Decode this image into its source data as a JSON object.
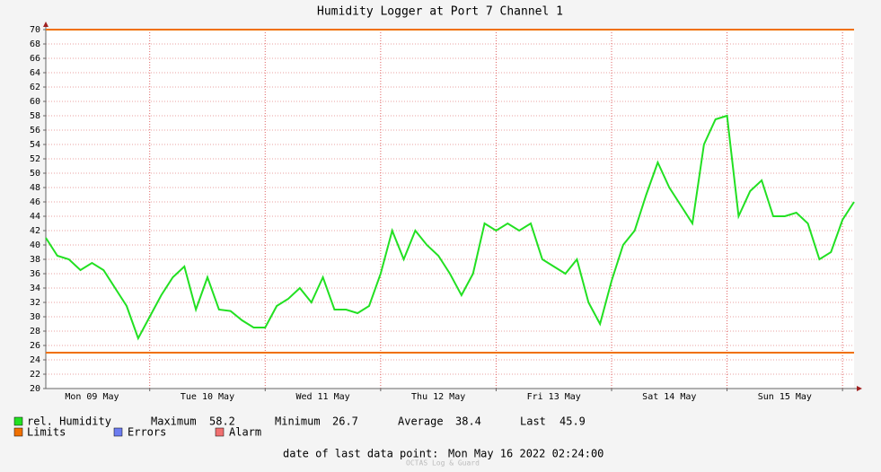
{
  "chart_data": {
    "type": "line",
    "title": "Humidity Logger at Port 7 Channel 1",
    "x": [
      0,
      0.1,
      0.2,
      0.3,
      0.4,
      0.5,
      0.6,
      0.7,
      0.8,
      0.9,
      1,
      1.1,
      1.2,
      1.3,
      1.4,
      1.5,
      1.6,
      1.7,
      1.8,
      1.9,
      2,
      2.1,
      2.2,
      2.3,
      2.4,
      2.5,
      2.6,
      2.7,
      2.8,
      2.9,
      3,
      3.1,
      3.2,
      3.3,
      3.4,
      3.5,
      3.6,
      3.7,
      3.8,
      3.9,
      4,
      4.1,
      4.2,
      4.3,
      4.4,
      4.5,
      4.6,
      4.7,
      4.8,
      4.9,
      5,
      5.1,
      5.2,
      5.3,
      5.4,
      5.5,
      5.6,
      5.7,
      5.8,
      5.9,
      6,
      6.1,
      6.2,
      6.3,
      6.4,
      6.5,
      6.6,
      6.7,
      6.8,
      6.9,
      7
    ],
    "xlim": [
      0,
      7
    ],
    "xticks": [
      {
        "value": 0.4,
        "label": "Mon 09 May"
      },
      {
        "value": 1.4,
        "label": "Tue 10 May"
      },
      {
        "value": 2.4,
        "label": "Wed 11 May"
      },
      {
        "value": 3.4,
        "label": "Thu 12 May"
      },
      {
        "value": 4.4,
        "label": "Fri 13 May"
      },
      {
        "value": 5.4,
        "label": "Sat 14 May"
      },
      {
        "value": 6.4,
        "label": "Sun 15 May"
      }
    ],
    "xgrid_lines": [
      0.9,
      1.9,
      2.9,
      3.9,
      4.9,
      5.9,
      6.9
    ],
    "ylim": [
      20,
      70
    ],
    "yticks": [
      20,
      22,
      24,
      26,
      28,
      30,
      32,
      34,
      36,
      38,
      40,
      42,
      44,
      46,
      48,
      50,
      52,
      54,
      56,
      58,
      60,
      62,
      64,
      66,
      68,
      70
    ],
    "grid": true,
    "series": [
      {
        "name": "rel. Humidity",
        "color": "#22e022",
        "values": [
          41,
          38.5,
          38,
          36.5,
          37.5,
          36.5,
          34,
          31.5,
          27,
          30,
          33,
          35.5,
          37,
          31,
          35.5,
          31,
          30.8,
          29.5,
          28.5,
          28.5,
          31.5,
          32.5,
          34,
          32,
          35.5,
          31,
          31,
          30.5,
          31.5,
          36,
          42,
          38,
          42,
          40,
          38.5,
          36,
          33,
          36,
          43,
          42,
          43,
          42,
          43,
          38,
          37,
          36,
          38,
          32,
          29,
          35,
          40,
          42,
          47,
          51.5,
          48,
          45.5,
          43,
          54,
          57.5,
          58,
          44,
          47.5,
          49,
          44,
          44,
          44.5,
          43,
          38,
          39,
          43.5,
          46
        ]
      }
    ],
    "limits": {
      "name": "Limits",
      "color": "#f07000",
      "values": [
        70,
        25
      ]
    },
    "extra_legend": [
      {
        "name": "Errors",
        "color": "#6c7cf0"
      },
      {
        "name": "Alarm",
        "color": "#f07070"
      }
    ],
    "stats": [
      {
        "label": "Maximum",
        "value": 58.2
      },
      {
        "label": "Minimum",
        "value": 26.7
      },
      {
        "label": "Average",
        "value": 38.4
      },
      {
        "label": "Last",
        "value": 45.9
      }
    ],
    "last_point_label": "date of last data point:",
    "last_point": "Mon May 16 2022 02:24:00",
    "footer": "OCTAS Log & Guard"
  }
}
